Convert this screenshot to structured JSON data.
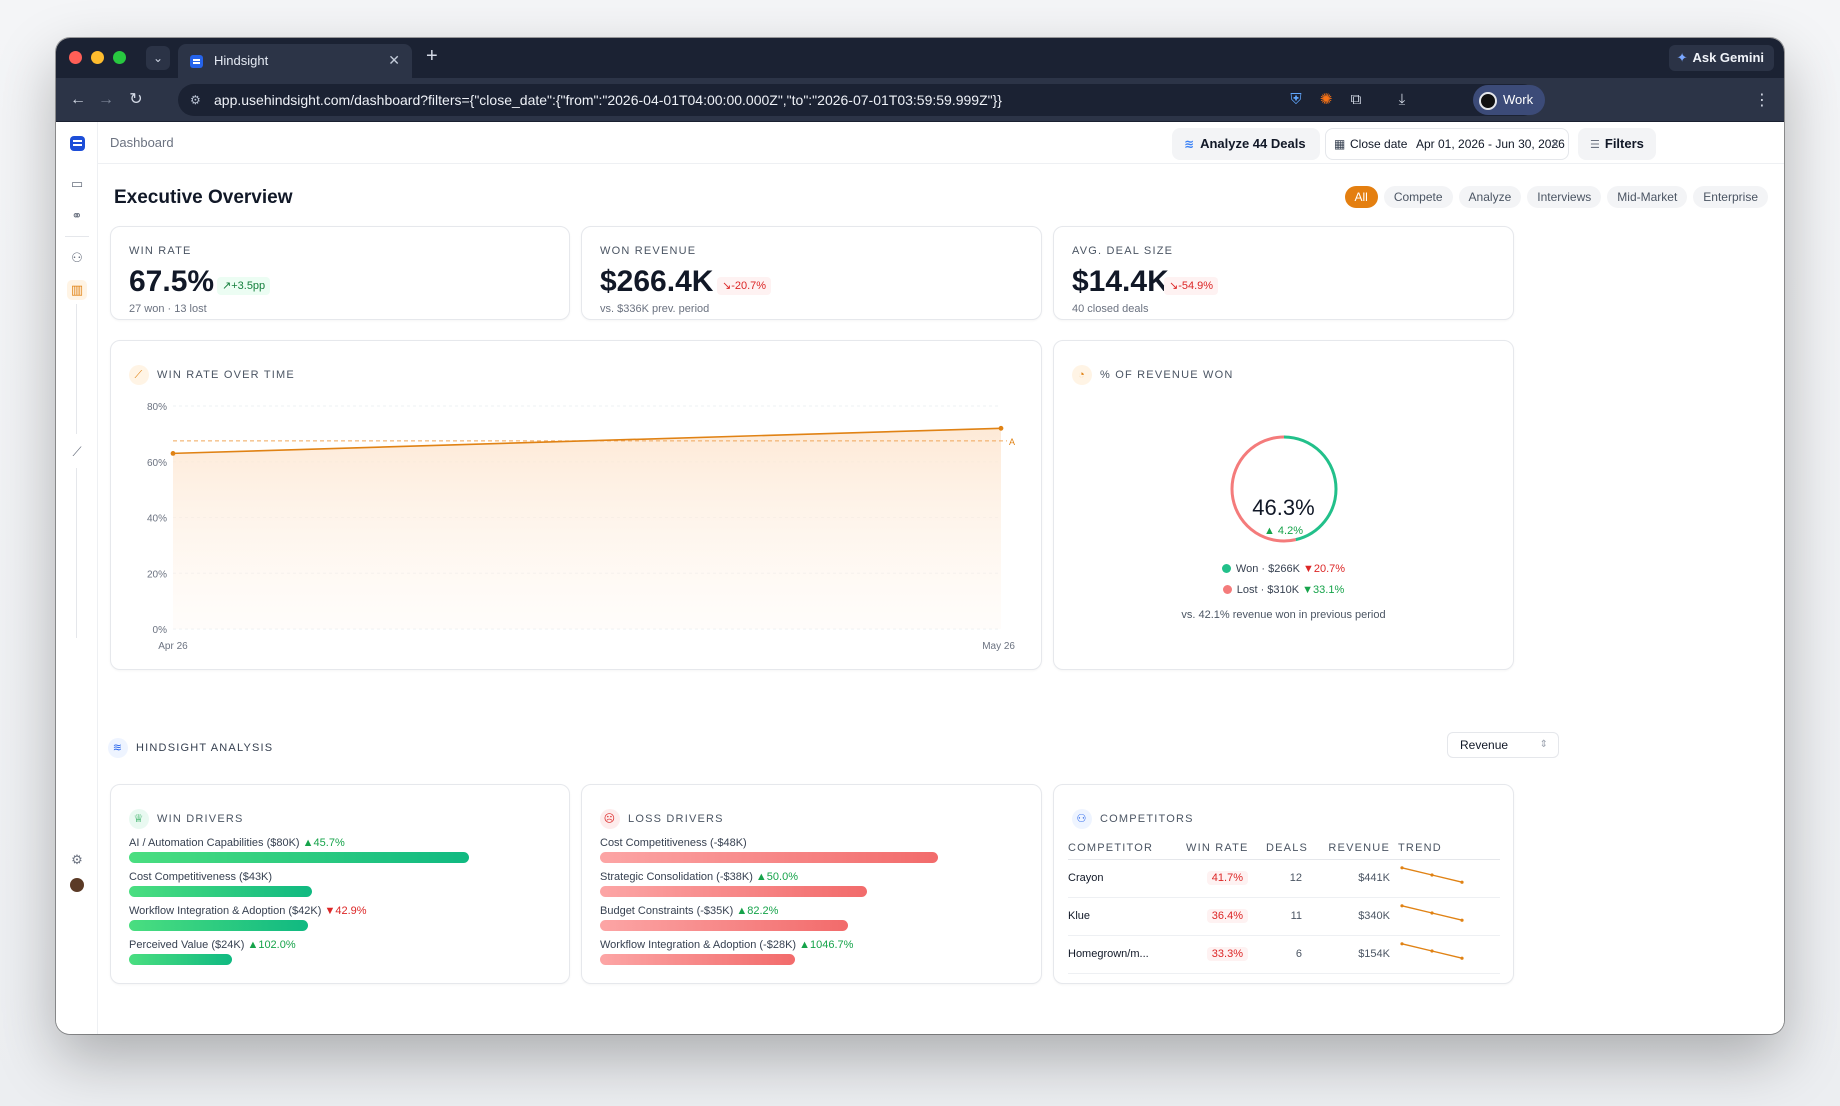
{
  "browser": {
    "tab_title": "Hindsight",
    "url": "app.usehindsight.com/dashboard?filters={\"close_date\":{\"from\":\"2026-04-01T04:00:00.000Z\",\"to\":\"2026-07-01T03:59:59.999Z\"}}",
    "ask_gemini": "Ask Gemini",
    "profile": "Work"
  },
  "header": {
    "breadcrumb": "Dashboard",
    "analyze_button": "Analyze 44 Deals",
    "date_filter_label": "Close date",
    "date_filter_value": "Apr 01, 2026 - Jun 30, 2026",
    "filters_button": "Filters"
  },
  "page": {
    "title": "Executive Overview",
    "chips": [
      "All",
      "Compete",
      "Analyze",
      "Interviews",
      "Mid-Market",
      "Enterprise"
    ],
    "active_chip": "All"
  },
  "kpis": [
    {
      "label": "WIN RATE",
      "value": "67.5%",
      "delta": "+3.5pp",
      "direction": "up",
      "sub": "27 won · 13 lost"
    },
    {
      "label": "WON REVENUE",
      "value": "$266.4K",
      "delta": "-20.7%",
      "direction": "down",
      "sub": "vs. $336K prev. period"
    },
    {
      "label": "AVG. DEAL SIZE",
      "value": "$14.4K",
      "delta": "-54.9%",
      "direction": "down",
      "sub": "40 closed deals"
    }
  ],
  "win_rate_chart": {
    "title": "WIN RATE OVER TIME",
    "y_ticks": [
      "80%",
      "60%",
      "40%",
      "20%",
      "0%"
    ],
    "x_ticks": [
      "Apr 26",
      "May 26"
    ],
    "avg_marker_label": "A"
  },
  "chart_data": {
    "type": "area",
    "title": "WIN RATE OVER TIME",
    "x": [
      "Apr 26",
      "May 26"
    ],
    "series": [
      {
        "values": [
          63,
          72
        ]
      }
    ],
    "reference_line": 67.5,
    "ylim": [
      0,
      80
    ],
    "y_ticks": [
      80,
      60,
      40,
      20,
      0
    ],
    "grid": true
  },
  "revenue_won": {
    "title": "% OF REVENUE WON",
    "value": "46.3%",
    "delta": "▲ 4.2%",
    "won_fraction": 0.463,
    "won_label": "Won · $266K",
    "won_delta": "▼20.7%",
    "lost_label": "Lost · $310K",
    "lost_delta": "▼33.1%",
    "note": "vs. 42.1% revenue won in previous period",
    "won_color": "#22c08a",
    "lost_color": "#f47b7b"
  },
  "analysis": {
    "title": "HINDSIGHT ANALYSIS",
    "sort_select": "Revenue"
  },
  "win_drivers": {
    "title": "WIN DRIVERS",
    "items": [
      {
        "label": "AI / Automation Capabilities ($80K)",
        "delta": "▲45.7%",
        "dir": "up",
        "share": 0.81
      },
      {
        "label": "Cost Competitiveness ($43K)",
        "delta": "",
        "dir": "up",
        "share": 0.435
      },
      {
        "label": "Workflow Integration & Adoption ($42K)",
        "delta": "▼42.9%",
        "dir": "down",
        "share": 0.425
      },
      {
        "label": "Perceived Value ($24K)",
        "delta": "▲102.0%",
        "dir": "up",
        "share": 0.245
      }
    ]
  },
  "loss_drivers": {
    "title": "LOSS DRIVERS",
    "items": [
      {
        "label": "Cost Competitiveness (-$48K)",
        "delta": "",
        "dir": "up",
        "share": 0.805
      },
      {
        "label": "Strategic Consolidation (-$38K)",
        "delta": "▲50.0%",
        "dir": "up",
        "share": 0.635
      },
      {
        "label": "Budget Constraints (-$35K)",
        "delta": "▲82.2%",
        "dir": "up",
        "share": 0.59
      },
      {
        "label": "Workflow Integration & Adoption (-$28K)",
        "delta": "▲1046.7%",
        "dir": "up",
        "share": 0.465
      }
    ]
  },
  "competitors": {
    "title": "COMPETITORS",
    "columns": [
      "COMPETITOR",
      "WIN RATE",
      "DEALS",
      "REVENUE",
      "TREND"
    ],
    "rows": [
      {
        "name": "Crayon",
        "win_rate": "41.7%",
        "deals": "12",
        "revenue": "$441K",
        "trend": [
          8,
          5,
          2
        ]
      },
      {
        "name": "Klue",
        "win_rate": "36.4%",
        "deals": "11",
        "revenue": "$340K",
        "trend": [
          8,
          5,
          2
        ]
      },
      {
        "name": "Homegrown/m...",
        "win_rate": "33.3%",
        "deals": "6",
        "revenue": "$154K",
        "trend": [
          8,
          5,
          2
        ]
      }
    ]
  }
}
